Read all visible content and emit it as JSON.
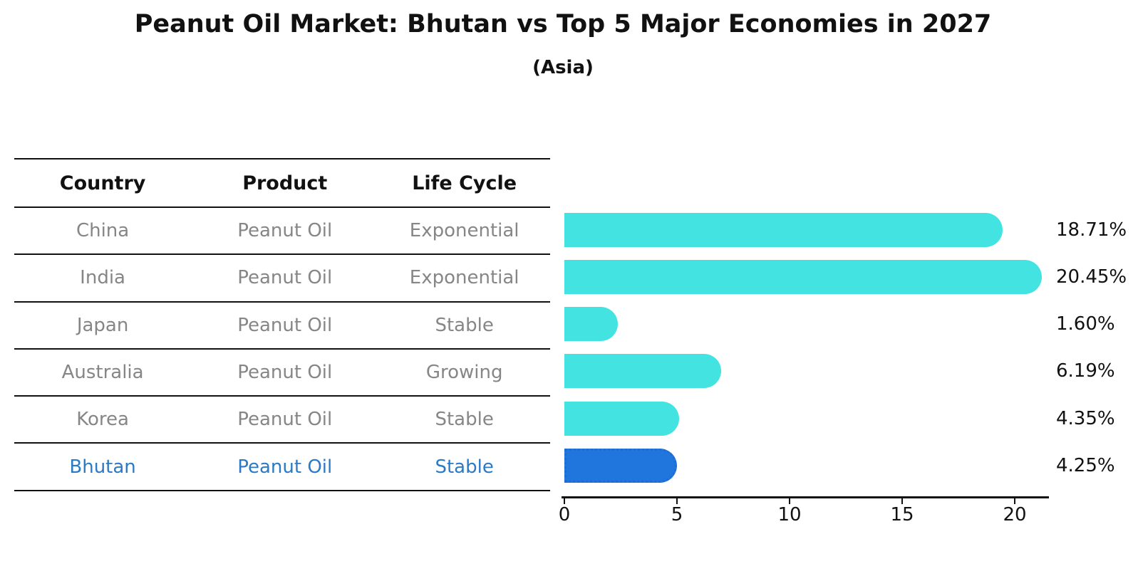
{
  "title": "Peanut Oil Market: Bhutan vs Top 5 Major Economies in 2027",
  "subtitle": "(Asia)",
  "colors": {
    "bar_default": "#42e3e0",
    "bar_highlight": "#2176dd",
    "bar_highlight_edge": "#1d6cd2",
    "highlight_text": "#2c7ac6",
    "cell_text": "#868686",
    "header_text": "#111111",
    "axis": "#111111"
  },
  "table": {
    "headers": [
      "Country",
      "Product",
      "Life Cycle"
    ],
    "rows": [
      {
        "country": "China",
        "product": "Peanut Oil",
        "life_cycle": "Exponential",
        "highlight": false
      },
      {
        "country": "India",
        "product": "Peanut Oil",
        "life_cycle": "Exponential",
        "highlight": false
      },
      {
        "country": "Japan",
        "product": "Peanut Oil",
        "life_cycle": "Stable",
        "highlight": false
      },
      {
        "country": "Australia",
        "product": "Peanut Oil",
        "life_cycle": "Growing",
        "highlight": false
      },
      {
        "country": "Korea",
        "product": "Peanut Oil",
        "life_cycle": "Stable",
        "highlight": false
      },
      {
        "country": "Bhutan",
        "product": "Peanut Oil",
        "life_cycle": "Stable",
        "highlight": true
      }
    ]
  },
  "chart_data": {
    "type": "bar",
    "orientation": "horizontal",
    "title": "Peanut Oil Market: Bhutan vs Top 5 Major Economies in 2027",
    "subtitle": "(Asia)",
    "categories": [
      "China",
      "India",
      "Japan",
      "Australia",
      "Korea",
      "Bhutan"
    ],
    "values": [
      18.71,
      20.45,
      1.6,
      6.19,
      4.35,
      4.25
    ],
    "value_labels": [
      "18.71%",
      "20.45%",
      "1.60%",
      "6.19%",
      "4.35%",
      "4.25%"
    ],
    "highlight_index": 5,
    "xlabel": "",
    "ylabel": "",
    "xlim": [
      0,
      21.6
    ],
    "xticks": [
      0,
      5,
      10,
      15,
      20
    ],
    "xtick_labels": [
      "0",
      "5",
      "10",
      "15",
      "20"
    ],
    "grid": false,
    "legend": "none"
  }
}
